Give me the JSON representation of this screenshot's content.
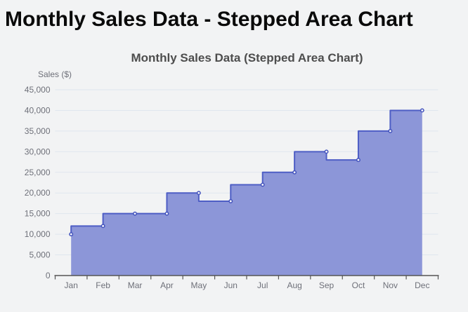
{
  "page": {
    "heading": "Monthly Sales Data - Stepped Area Chart",
    "background_color": "#f2f3f4"
  },
  "chart_data": {
    "type": "area",
    "variant": "stepped",
    "step": "start",
    "title": "Monthly Sales Data (Stepped Area Chart)",
    "xlabel": "",
    "ylabel": "Sales ($)",
    "categories": [
      "Jan",
      "Feb",
      "Mar",
      "Apr",
      "May",
      "Jun",
      "Jul",
      "Aug",
      "Sep",
      "Oct",
      "Nov",
      "Dec"
    ],
    "series": [
      {
        "name": "Sales",
        "values": [
          10000,
          12000,
          15000,
          15000,
          20000,
          18000,
          22000,
          25000,
          30000,
          28000,
          35000,
          40000
        ]
      }
    ],
    "ylim": [
      0,
      45000
    ],
    "ytick_interval": 5000,
    "ytick_labels": [
      "0",
      "5,000",
      "10,000",
      "15,000",
      "20,000",
      "25,000",
      "30,000",
      "35,000",
      "40,000",
      "45,000"
    ],
    "grid": true,
    "legend_position": "none",
    "markers": true,
    "colors": {
      "area_fill": "#8c96d8",
      "line": "#4e5ec5",
      "marker_fill": "#f4f5fc",
      "marker_stroke": "#4353bd",
      "grid_line": "#dfe6ee",
      "axis_line": "#555555",
      "axis_label": "#6e7079",
      "chart_title": "#4d4d4d",
      "heading": "#0a0a0a"
    }
  }
}
